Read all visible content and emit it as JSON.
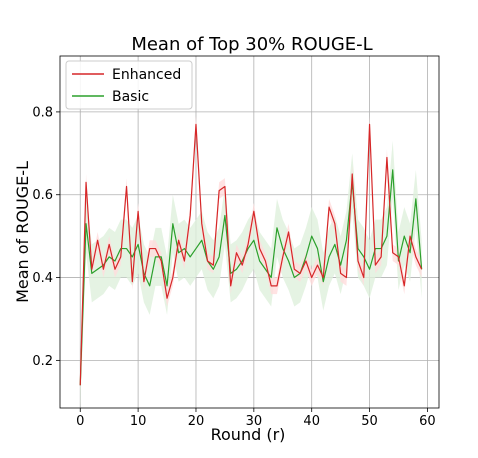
{
  "chart_data": {
    "type": "line",
    "title": "Mean of Top 30% ROUGE-L",
    "xlabel": "Round (r)",
    "ylabel": "Mean of ROUGE-L",
    "xlim": [
      -3.5,
      62
    ],
    "ylim": [
      0.085,
      0.935
    ],
    "xticks": [
      0,
      10,
      20,
      30,
      40,
      50,
      60
    ],
    "yticks": [
      0.2,
      0.4,
      0.6,
      0.8
    ],
    "xtick_labels": [
      "0",
      "10",
      "20",
      "30",
      "40",
      "50",
      "60"
    ],
    "ytick_labels": [
      "0.2",
      "0.4",
      "0.6",
      "0.8"
    ],
    "grid": true,
    "legend_position": "top-left",
    "x": [
      0,
      1,
      2,
      3,
      4,
      5,
      6,
      7,
      8,
      9,
      10,
      11,
      12,
      13,
      14,
      15,
      16,
      17,
      18,
      19,
      20,
      21,
      22,
      23,
      24,
      25,
      26,
      27,
      28,
      29,
      30,
      31,
      32,
      33,
      34,
      35,
      36,
      37,
      38,
      39,
      40,
      41,
      42,
      43,
      44,
      45,
      46,
      47,
      48,
      49,
      50,
      51,
      52,
      53,
      54,
      55,
      56,
      57,
      58,
      59
    ],
    "series": [
      {
        "name": "Enhanced",
        "color": "#d62728",
        "band_color": "#ffdcdc",
        "values": [
          0.14,
          0.63,
          0.42,
          0.49,
          0.42,
          0.48,
          0.42,
          0.45,
          0.62,
          0.39,
          0.56,
          0.39,
          0.47,
          0.47,
          0.44,
          0.35,
          0.4,
          0.49,
          0.44,
          0.55,
          0.77,
          0.53,
          0.44,
          0.43,
          0.61,
          0.62,
          0.38,
          0.46,
          0.43,
          0.48,
          0.56,
          0.47,
          0.44,
          0.38,
          0.38,
          0.45,
          0.51,
          0.42,
          0.41,
          0.44,
          0.4,
          0.43,
          0.4,
          0.57,
          0.53,
          0.41,
          0.4,
          0.65,
          0.44,
          0.4,
          0.77,
          0.43,
          0.45,
          0.69,
          0.46,
          0.45,
          0.38,
          0.5,
          0.45,
          0.42
        ],
        "band_half_width": 0.02
      },
      {
        "name": "Basic",
        "color": "#2ca02c",
        "band_color": "#dff0dc",
        "values": [
          0.14,
          0.53,
          0.41,
          0.42,
          0.43,
          0.45,
          0.44,
          0.47,
          0.47,
          0.45,
          0.48,
          0.41,
          0.38,
          0.45,
          0.45,
          0.38,
          0.53,
          0.46,
          0.47,
          0.45,
          0.47,
          0.49,
          0.44,
          0.42,
          0.45,
          0.55,
          0.41,
          0.42,
          0.44,
          0.47,
          0.49,
          0.44,
          0.42,
          0.4,
          0.52,
          0.47,
          0.44,
          0.4,
          0.41,
          0.45,
          0.5,
          0.47,
          0.39,
          0.45,
          0.48,
          0.43,
          0.49,
          0.63,
          0.47,
          0.45,
          0.42,
          0.47,
          0.47,
          0.5,
          0.66,
          0.44,
          0.5,
          0.46,
          0.59,
          0.42
        ],
        "band_half_width": 0.07
      }
    ]
  }
}
